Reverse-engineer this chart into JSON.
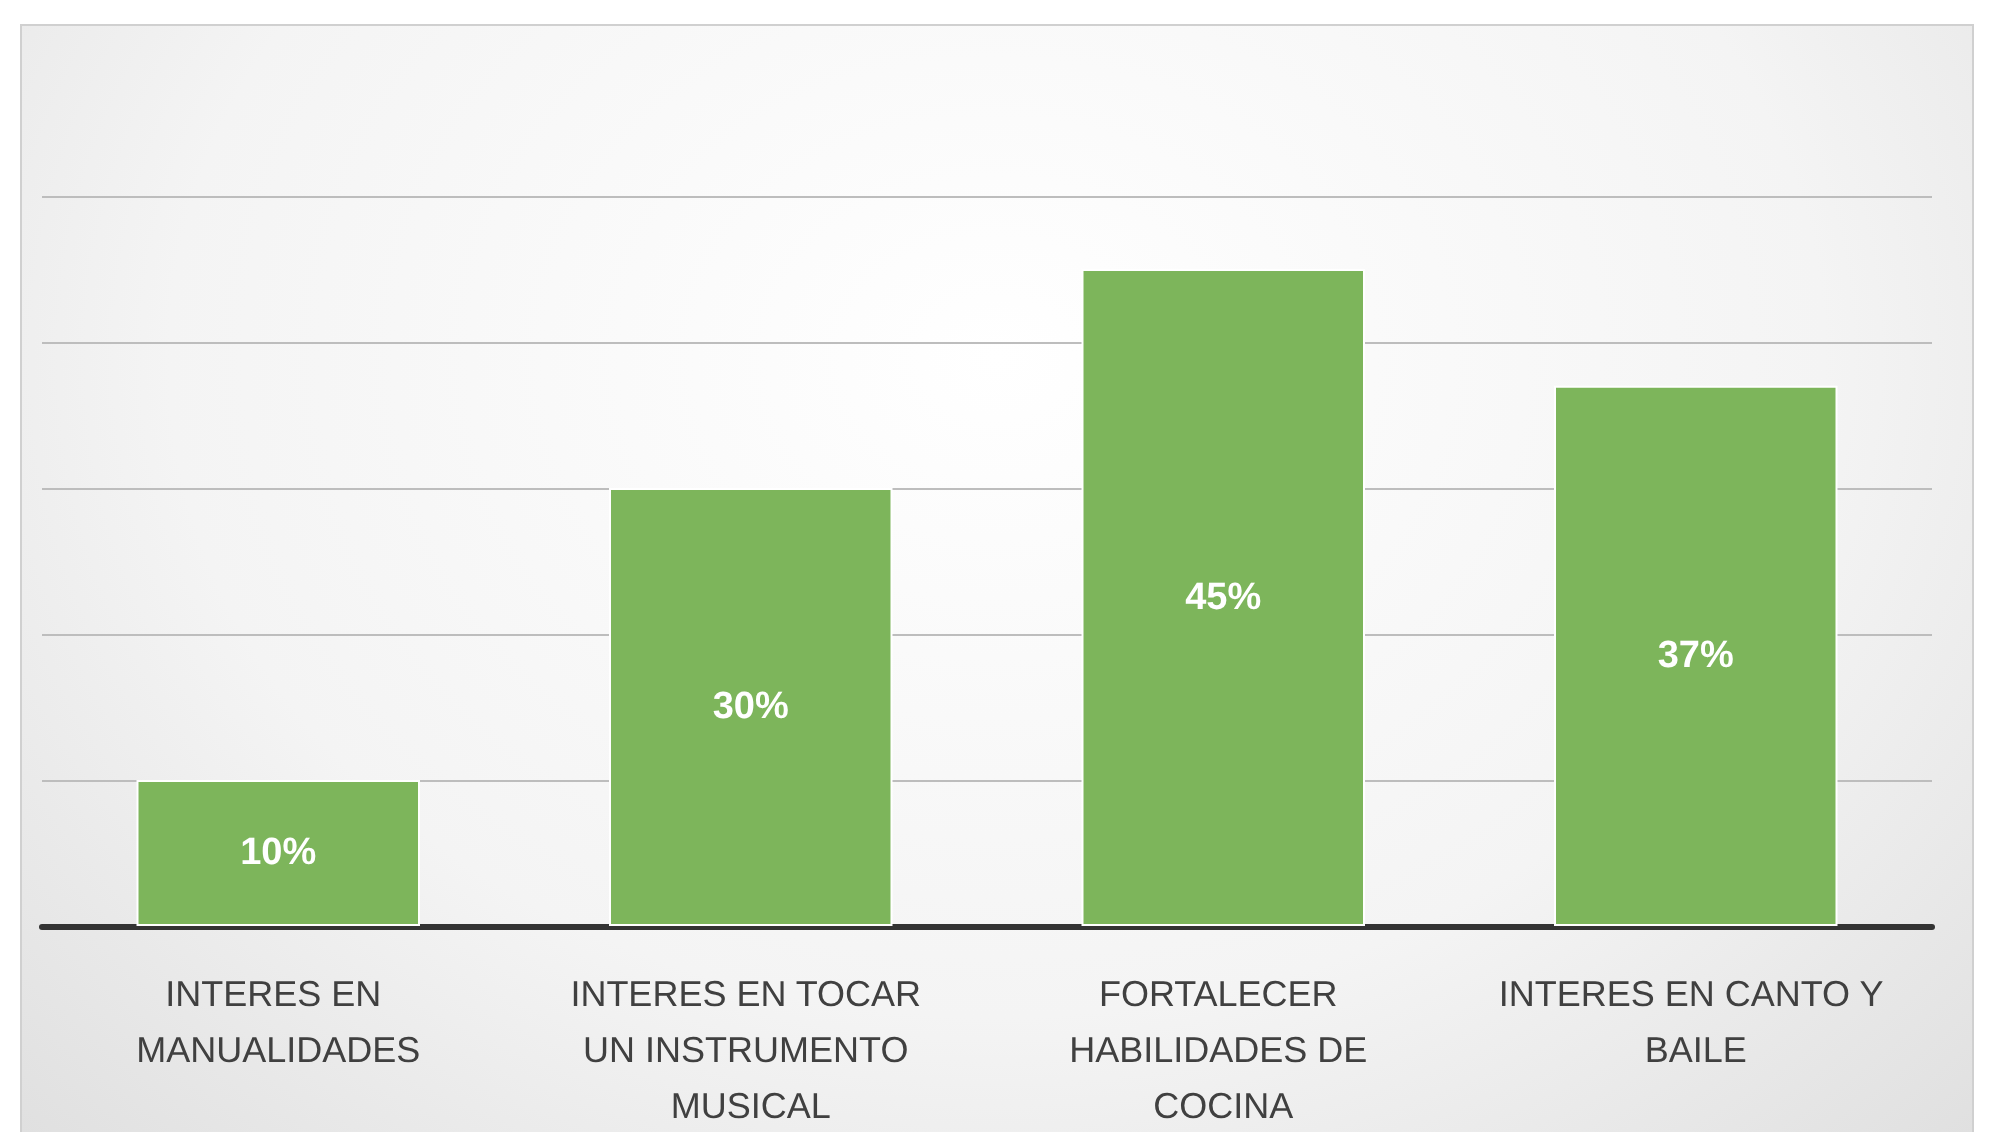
{
  "chart_data": {
    "type": "bar",
    "categories": [
      "INTERES EN MANUALIDADES",
      "INTERES EN TOCAR UN INSTRUMENTO MUSICAL",
      "FORTALECER HABILIDADES DE COCINA",
      "INTERES EN CANTO Y BAILE"
    ],
    "values": [
      10,
      30,
      45,
      37
    ],
    "value_labels": [
      "10%",
      "30%",
      "45%",
      "37%"
    ],
    "color": "#7db55b",
    "ylim": [
      0,
      50
    ],
    "yticks": [
      {
        "value": 0,
        "label": null
      },
      {
        "value": 10,
        "label": null
      },
      {
        "value": 20,
        "label": null
      },
      {
        "value": 30,
        "label": null
      },
      {
        "value": 40,
        "label": null
      },
      {
        "value": 50,
        "label": null
      }
    ],
    "tick_labels": "x",
    "grid": "y"
  }
}
